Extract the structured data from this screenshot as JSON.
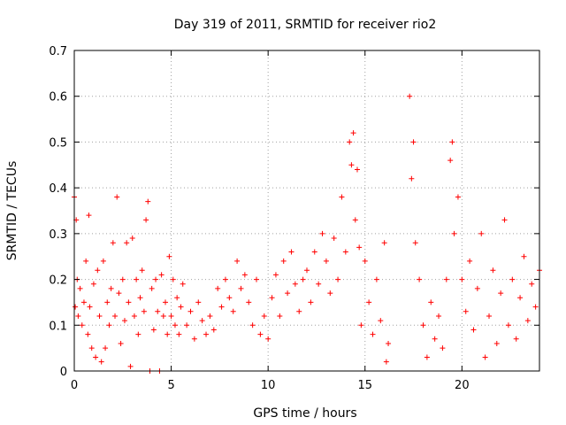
{
  "chart_data": {
    "type": "scatter",
    "title": "Day 319 of 2011, SRMTID for receiver rio2",
    "xlabel": "GPS time / hours",
    "ylabel": "SRMTID / TECUs",
    "xlim": [
      0,
      24
    ],
    "ylim": [
      0,
      0.7
    ],
    "xticks": [
      0,
      5,
      10,
      15,
      20
    ],
    "yticks": [
      0,
      0.1,
      0.2,
      0.3,
      0.4,
      0.5,
      0.6,
      0.7
    ],
    "xtick_labels": [
      "0",
      "5",
      "10",
      "15",
      "20"
    ],
    "ytick_labels": [
      "0",
      "0.1",
      "0.2",
      "0.3",
      "0.4",
      "0.5",
      "0.6",
      "0.7"
    ],
    "grid": true,
    "marker": "+",
    "color": "#ff0000",
    "series": [
      {
        "name": "rio2",
        "points": [
          [
            0.0,
            0.38
          ],
          [
            0.05,
            0.14
          ],
          [
            0.1,
            0.33
          ],
          [
            0.15,
            0.2
          ],
          [
            0.2,
            0.12
          ],
          [
            0.3,
            0.18
          ],
          [
            0.4,
            0.1
          ],
          [
            0.5,
            0.15
          ],
          [
            0.6,
            0.24
          ],
          [
            0.7,
            0.08
          ],
          [
            0.75,
            0.34
          ],
          [
            0.8,
            0.14
          ],
          [
            0.9,
            0.05
          ],
          [
            1.0,
            0.19
          ],
          [
            1.1,
            0.03
          ],
          [
            1.2,
            0.22
          ],
          [
            1.3,
            0.12
          ],
          [
            1.4,
            0.02
          ],
          [
            1.5,
            0.24
          ],
          [
            1.6,
            0.05
          ],
          [
            1.7,
            0.15
          ],
          [
            1.8,
            0.1
          ],
          [
            1.9,
            0.18
          ],
          [
            2.0,
            0.28
          ],
          [
            2.1,
            0.12
          ],
          [
            2.2,
            0.38
          ],
          [
            2.3,
            0.17
          ],
          [
            2.4,
            0.06
          ],
          [
            2.5,
            0.2
          ],
          [
            2.6,
            0.11
          ],
          [
            2.7,
            0.28
          ],
          [
            2.8,
            0.15
          ],
          [
            2.9,
            0.01
          ],
          [
            3.0,
            0.29
          ],
          [
            3.1,
            0.12
          ],
          [
            3.2,
            0.2
          ],
          [
            3.3,
            0.08
          ],
          [
            3.4,
            0.16
          ],
          [
            3.5,
            0.22
          ],
          [
            3.6,
            0.13
          ],
          [
            3.7,
            0.33
          ],
          [
            3.8,
            0.37
          ],
          [
            3.9,
            0.0
          ],
          [
            4.0,
            0.18
          ],
          [
            4.1,
            0.09
          ],
          [
            4.2,
            0.2
          ],
          [
            4.3,
            0.13
          ],
          [
            4.4,
            0.0
          ],
          [
            4.5,
            0.21
          ],
          [
            4.6,
            0.12
          ],
          [
            4.7,
            0.15
          ],
          [
            4.8,
            0.08
          ],
          [
            4.9,
            0.25
          ],
          [
            5.0,
            0.12
          ],
          [
            5.1,
            0.2
          ],
          [
            5.2,
            0.1
          ],
          [
            5.3,
            0.16
          ],
          [
            5.4,
            0.08
          ],
          [
            5.5,
            0.14
          ],
          [
            5.6,
            0.19
          ],
          [
            5.8,
            0.1
          ],
          [
            6.0,
            0.13
          ],
          [
            6.2,
            0.07
          ],
          [
            6.4,
            0.15
          ],
          [
            6.6,
            0.11
          ],
          [
            6.8,
            0.08
          ],
          [
            7.0,
            0.12
          ],
          [
            7.2,
            0.09
          ],
          [
            7.4,
            0.18
          ],
          [
            7.6,
            0.14
          ],
          [
            7.8,
            0.2
          ],
          [
            8.0,
            0.16
          ],
          [
            8.2,
            0.13
          ],
          [
            8.4,
            0.24
          ],
          [
            8.6,
            0.18
          ],
          [
            8.8,
            0.21
          ],
          [
            9.0,
            0.15
          ],
          [
            9.2,
            0.1
          ],
          [
            9.4,
            0.2
          ],
          [
            9.6,
            0.08
          ],
          [
            9.8,
            0.12
          ],
          [
            10.0,
            0.07
          ],
          [
            10.2,
            0.16
          ],
          [
            10.4,
            0.21
          ],
          [
            10.6,
            0.12
          ],
          [
            10.8,
            0.24
          ],
          [
            11.0,
            0.17
          ],
          [
            11.2,
            0.26
          ],
          [
            11.4,
            0.19
          ],
          [
            11.6,
            0.13
          ],
          [
            11.8,
            0.2
          ],
          [
            12.0,
            0.22
          ],
          [
            12.2,
            0.15
          ],
          [
            12.4,
            0.26
          ],
          [
            12.6,
            0.19
          ],
          [
            12.8,
            0.3
          ],
          [
            13.0,
            0.24
          ],
          [
            13.2,
            0.17
          ],
          [
            13.4,
            0.29
          ],
          [
            13.6,
            0.2
          ],
          [
            13.8,
            0.38
          ],
          [
            14.0,
            0.26
          ],
          [
            14.2,
            0.5
          ],
          [
            14.3,
            0.45
          ],
          [
            14.4,
            0.52
          ],
          [
            14.5,
            0.33
          ],
          [
            14.6,
            0.44
          ],
          [
            14.7,
            0.27
          ],
          [
            14.8,
            0.1
          ],
          [
            15.0,
            0.24
          ],
          [
            15.2,
            0.15
          ],
          [
            15.4,
            0.08
          ],
          [
            15.6,
            0.2
          ],
          [
            15.8,
            0.11
          ],
          [
            16.0,
            0.28
          ],
          [
            16.1,
            0.02
          ],
          [
            16.2,
            0.06
          ],
          [
            17.3,
            0.6
          ],
          [
            17.4,
            0.42
          ],
          [
            17.5,
            0.5
          ],
          [
            17.6,
            0.28
          ],
          [
            17.8,
            0.2
          ],
          [
            18.0,
            0.1
          ],
          [
            18.2,
            0.03
          ],
          [
            18.4,
            0.15
          ],
          [
            18.6,
            0.07
          ],
          [
            18.8,
            0.12
          ],
          [
            19.0,
            0.05
          ],
          [
            19.2,
            0.2
          ],
          [
            19.4,
            0.46
          ],
          [
            19.5,
            0.5
          ],
          [
            19.6,
            0.3
          ],
          [
            19.8,
            0.38
          ],
          [
            20.0,
            0.2
          ],
          [
            20.2,
            0.13
          ],
          [
            20.4,
            0.24
          ],
          [
            20.6,
            0.09
          ],
          [
            20.8,
            0.18
          ],
          [
            21.0,
            0.3
          ],
          [
            21.2,
            0.03
          ],
          [
            21.4,
            0.12
          ],
          [
            21.6,
            0.22
          ],
          [
            21.8,
            0.06
          ],
          [
            22.0,
            0.17
          ],
          [
            22.2,
            0.33
          ],
          [
            22.4,
            0.1
          ],
          [
            22.6,
            0.2
          ],
          [
            22.8,
            0.07
          ],
          [
            23.0,
            0.16
          ],
          [
            23.2,
            0.25
          ],
          [
            23.4,
            0.11
          ],
          [
            23.6,
            0.19
          ],
          [
            23.8,
            0.14
          ],
          [
            24.0,
            0.22
          ]
        ]
      }
    ]
  }
}
